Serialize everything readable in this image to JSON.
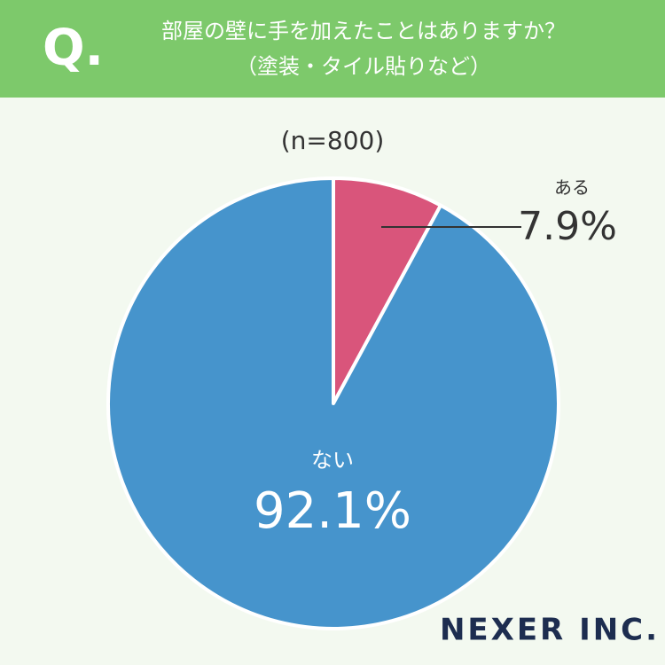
{
  "header": {
    "q": "Q.",
    "title": "部屋の壁に手を加えたことはありますか？",
    "subtitle": "（塗装・タイル貼りなど）"
  },
  "chart_data": {
    "type": "pie",
    "subtitle": "(n=800)",
    "categories": [
      "ある",
      "ない"
    ],
    "values": [
      7.9,
      92.1
    ],
    "value_labels": [
      "7.9%",
      "92.1%"
    ],
    "colors": [
      "#d9557b",
      "#4694cc"
    ]
  },
  "logo": "NEXER INC."
}
